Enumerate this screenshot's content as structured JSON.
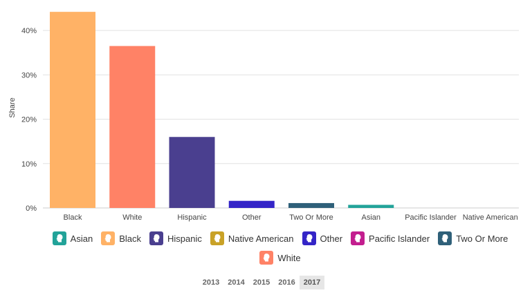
{
  "chart_data": {
    "type": "bar",
    "ylabel": "Share",
    "ylim": [
      0,
      45
    ],
    "yticks": [
      "0%",
      "10%",
      "20%",
      "30%",
      "40%"
    ],
    "ytick_values": [
      0,
      10,
      20,
      30,
      40
    ],
    "grid": true,
    "categories": [
      "Black",
      "White",
      "Hispanic",
      "Other",
      "Two Or More",
      "Asian",
      "Pacific Islander",
      "Native American"
    ],
    "values": [
      44.2,
      36.5,
      16.0,
      1.6,
      1.1,
      0.7,
      0.0,
      0.0
    ],
    "colors": [
      "#ffb266",
      "#ff8266",
      "#4a3f8f",
      "#3425c7",
      "#2f6079",
      "#22a399",
      "#c31e8f",
      "#c9a227"
    ]
  },
  "legend": [
    {
      "label": "Asian",
      "color": "#22a399"
    },
    {
      "label": "Black",
      "color": "#ffb266"
    },
    {
      "label": "Hispanic",
      "color": "#4a3f8f"
    },
    {
      "label": "Native American",
      "color": "#c9a227"
    },
    {
      "label": "Other",
      "color": "#3425c7"
    },
    {
      "label": "Pacific Islander",
      "color": "#c31e8f"
    },
    {
      "label": "Two Or More",
      "color": "#2f6079"
    },
    {
      "label": "White",
      "color": "#ff8266"
    }
  ],
  "years": [
    "2013",
    "2014",
    "2015",
    "2016",
    "2017"
  ],
  "selected_year": "2017"
}
